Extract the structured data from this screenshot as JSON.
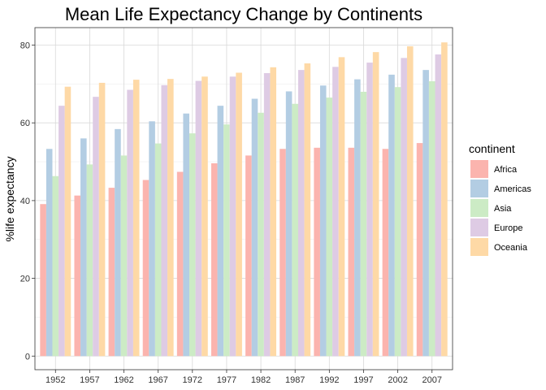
{
  "chart_data": {
    "type": "bar",
    "title": "Mean Life Expectancy Change by Continents",
    "xlabel": "",
    "ylabel": "%life expectancy",
    "ylim": [
      -3.5,
      84.5
    ],
    "yticks": [
      0,
      20,
      40,
      60,
      80
    ],
    "grid": true,
    "legend_title": "continent",
    "legend_position": "right",
    "categories": [
      "1952",
      "1957",
      "1962",
      "1967",
      "1972",
      "1977",
      "1982",
      "1987",
      "1992",
      "1997",
      "2002",
      "2007"
    ],
    "series": [
      {
        "name": "Africa",
        "color": "#FBB4AE",
        "values": [
          39.1,
          41.3,
          43.3,
          45.3,
          47.4,
          49.6,
          51.6,
          53.3,
          53.6,
          53.6,
          53.3,
          54.8
        ]
      },
      {
        "name": "Americas",
        "color": "#B3CDE3",
        "values": [
          53.3,
          56.0,
          58.4,
          60.4,
          62.4,
          64.4,
          66.2,
          68.1,
          69.6,
          71.2,
          72.4,
          73.6
        ]
      },
      {
        "name": "Asia",
        "color": "#CCEBC5",
        "values": [
          46.3,
          49.3,
          51.6,
          54.7,
          57.3,
          59.6,
          62.6,
          64.9,
          66.5,
          68.0,
          69.2,
          70.7
        ]
      },
      {
        "name": "Europe",
        "color": "#DECBE4",
        "values": [
          64.4,
          66.7,
          68.5,
          69.7,
          70.8,
          71.9,
          72.8,
          73.6,
          74.4,
          75.5,
          76.7,
          77.6
        ]
      },
      {
        "name": "Oceania",
        "color": "#FED9A6",
        "values": [
          69.3,
          70.3,
          71.1,
          71.3,
          71.9,
          72.9,
          74.3,
          75.3,
          76.9,
          78.2,
          79.7,
          80.7
        ]
      }
    ]
  }
}
